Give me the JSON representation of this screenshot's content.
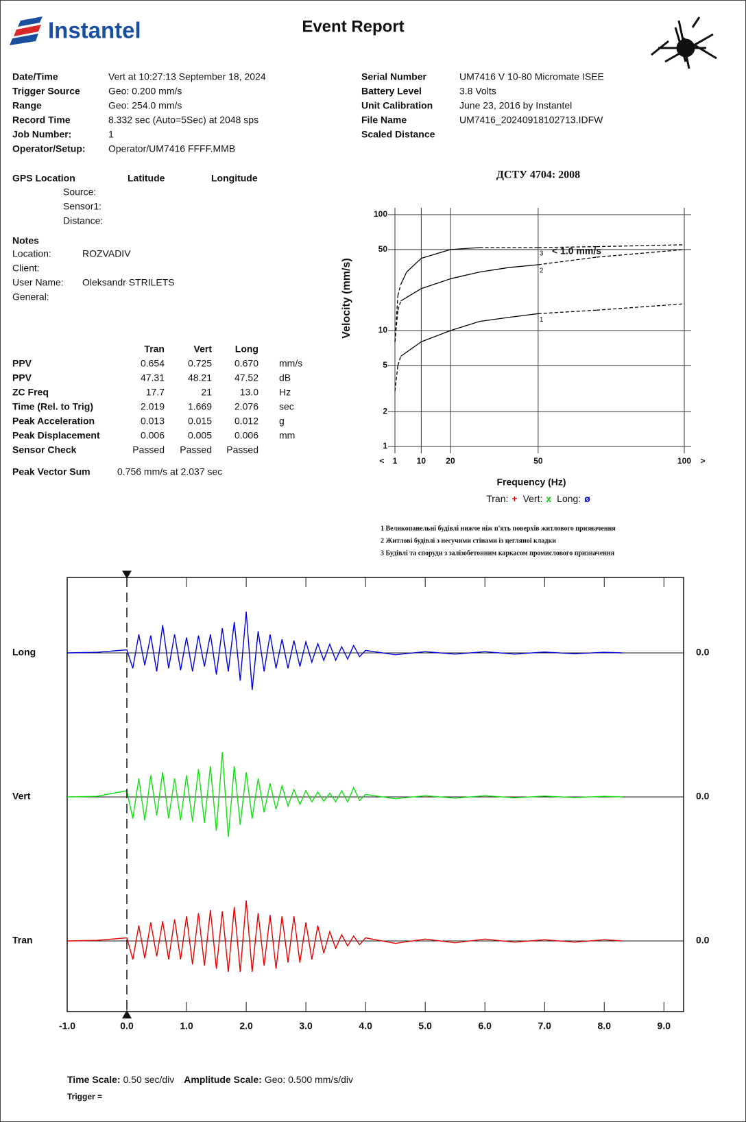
{
  "header": {
    "logo": "Instantel",
    "title": "Event Report"
  },
  "info_left": [
    {
      "label": "Date/Time",
      "value": "Vert at 10:27:13 September 18, 2024"
    },
    {
      "label": "Trigger Source",
      "value": "Geo: 0.200 mm/s"
    },
    {
      "label": "Range",
      "value": "Geo: 254.0 mm/s"
    },
    {
      "label": "Record Time",
      "value": "8.332 sec (Auto=5Sec) at 2048 sps"
    },
    {
      "label": "Job Number:",
      "value": "1"
    },
    {
      "label": "Operator/Setup:",
      "value": "Operator/UM7416 FFFF.MMB"
    }
  ],
  "info_right": [
    {
      "label": "Serial Number",
      "value": "UM7416 V 10-80 Micromate ISEE"
    },
    {
      "label": "Battery Level",
      "value": "3.8 Volts"
    },
    {
      "label": "Unit Calibration",
      "value": "June 23, 2016 by Instantel"
    },
    {
      "label": "File Name",
      "value": "UM7416_20240918102713.IDFW"
    },
    {
      "label": "Scaled Distance"
    }
  ],
  "gps": {
    "title": "GPS Location",
    "columns": [
      "Latitude",
      "Longitude"
    ],
    "rows": [
      "Source:",
      "Sensor1:",
      "Distance:"
    ]
  },
  "notes": {
    "title": "Notes",
    "rows": [
      {
        "label": "Location:",
        "value": "ROZVADIV"
      },
      {
        "label": "Client:"
      },
      {
        "label": "User Name:",
        "value": "Oleksandr STRILETS"
      },
      {
        "label": "General:"
      }
    ]
  },
  "peaks": {
    "columns": [
      "Tran",
      "Vert",
      "Long"
    ],
    "rows": [
      {
        "label": "PPV",
        "values": [
          "0.654",
          "0.725",
          "0.670"
        ],
        "unit": "mm/s"
      },
      {
        "label": "PPV",
        "values": [
          "47.31",
          "48.21",
          "47.52"
        ],
        "unit": "dB"
      },
      {
        "label": "ZC Freq",
        "values": [
          "17.7",
          "21",
          "13.0"
        ],
        "unit": "Hz"
      },
      {
        "label": "Time (Rel. to Trig)",
        "values": [
          "2.019",
          "1.669",
          "2.076"
        ],
        "unit": "sec"
      },
      {
        "label": "Peak Acceleration",
        "values": [
          "0.013",
          "0.015",
          "0.012"
        ],
        "unit": "g"
      },
      {
        "label": "Peak Displacement",
        "values": [
          "0.006",
          "0.005",
          "0.006"
        ],
        "unit": "mm"
      },
      {
        "label": "Sensor Check",
        "values": [
          "Passed",
          "Passed",
          "Passed"
        ]
      }
    ]
  },
  "peak_vector_sum": {
    "label": "Peak Vector Sum",
    "value": "0.756 mm/s at 2.037 sec"
  },
  "footer": {
    "time_scale_label": "Time Scale:",
    "time_scale": "0.50 sec/div",
    "amplitude_scale_label": "Amplitude Scale:",
    "amplitude_scale": "Geo: 0.500 mm/s/div",
    "trigger": "Trigger ="
  },
  "chart_data": [
    {
      "type": "line",
      "title": "ДСТУ 4704: 2008",
      "xlabel": "Frequency (Hz)",
      "ylabel": "Velocity (mm/s)",
      "x_under": "<",
      "x_over": ">",
      "xlim": [
        1,
        100
      ],
      "ylim": [
        1,
        100
      ],
      "ylog": true,
      "xticks": [
        1,
        10,
        20,
        50,
        100
      ],
      "yticks": [
        1,
        2,
        5,
        10,
        50,
        100
      ],
      "grid": true,
      "series": [
        {
          "name": "1",
          "color": "#000000",
          "x": [
            1,
            2,
            3,
            10,
            20,
            30,
            40,
            50,
            70,
            100
          ],
          "values": [
            3,
            5,
            6,
            8,
            10,
            12,
            13,
            14,
            15,
            17
          ],
          "dashed": [
            true,
            true,
            false,
            false,
            false,
            false,
            false,
            true,
            true,
            true
          ]
        },
        {
          "name": "2",
          "color": "#000000",
          "x": [
            1,
            2,
            3,
            10,
            20,
            30,
            40,
            50,
            70,
            100
          ],
          "values": [
            8,
            15,
            18,
            23,
            28,
            32,
            35,
            37,
            43,
            50
          ],
          "dashed": [
            true,
            true,
            false,
            false,
            false,
            false,
            false,
            true,
            true,
            true
          ]
        },
        {
          "name": "3",
          "color": "#000000",
          "x": [
            1,
            2,
            3,
            5,
            10,
            20,
            30,
            50,
            70,
            100
          ],
          "values": [
            8,
            20,
            25,
            32,
            42,
            50,
            52,
            52,
            53,
            55
          ],
          "dashed": [
            true,
            true,
            false,
            false,
            false,
            false,
            true,
            true,
            true,
            true
          ]
        }
      ],
      "annotation": "< 1.0 mm/s",
      "legend": [
        {
          "label": "Tran:",
          "symbol": "+",
          "color": "#e00000"
        },
        {
          "label": "Vert:",
          "symbol": "x",
          "color": "#00d000"
        },
        {
          "label": "Long:",
          "symbol": "ø",
          "color": "#0000e0"
        }
      ],
      "notes": [
        "1 Великопанельні будівлі нижче ніж п'ять поверхів житлового призначення",
        "2 Житлові будівлі з несучими стінами із цегляної кладки",
        "3 Будівлі та споруди з залізобетонним каркасом промислового призначення"
      ]
    },
    {
      "type": "waveform",
      "xlim": [
        -1,
        9.33
      ],
      "xticks": [
        {
          "value": -1,
          "label": "-1.0"
        },
        {
          "value": 0,
          "label": "0.0"
        },
        {
          "value": 1,
          "label": "1.0"
        },
        {
          "value": 2,
          "label": "2.0"
        },
        {
          "value": 3,
          "label": "3.0"
        },
        {
          "value": 4,
          "label": "4.0"
        },
        {
          "value": 5,
          "label": "5.0"
        },
        {
          "value": 6,
          "label": "6.0"
        },
        {
          "value": 7,
          "label": "7.0"
        },
        {
          "value": 8,
          "label": "8.0"
        },
        {
          "value": 9,
          "label": "9.0"
        }
      ],
      "trigger": 0,
      "x": [
        -1.0,
        -0.5,
        0.0,
        0.1,
        0.2,
        0.3,
        0.4,
        0.5,
        0.6,
        0.7,
        0.8,
        0.9,
        1.0,
        1.1,
        1.2,
        1.3,
        1.4,
        1.5,
        1.6,
        1.7,
        1.8,
        1.9,
        2.0,
        2.1,
        2.2,
        2.3,
        2.4,
        2.5,
        2.6,
        2.7,
        2.8,
        2.9,
        3.0,
        3.1,
        3.2,
        3.3,
        3.4,
        3.5,
        3.6,
        3.7,
        3.8,
        3.9,
        4.0,
        4.5,
        5.0,
        5.5,
        6.0,
        6.5,
        7.0,
        7.5,
        8.0,
        8.3
      ],
      "series": [
        {
          "name": "Long",
          "color": "#0000e0",
          "zero_label": {
            "value": 0,
            "label": "0.0"
          },
          "values": [
            0.0,
            0.01,
            0.05,
            -0.25,
            0.3,
            -0.2,
            0.28,
            -0.3,
            0.45,
            -0.25,
            0.3,
            -0.28,
            0.25,
            -0.3,
            0.28,
            -0.22,
            0.3,
            -0.35,
            0.4,
            -0.3,
            0.5,
            -0.45,
            0.67,
            -0.6,
            0.35,
            -0.3,
            0.3,
            -0.25,
            0.22,
            -0.25,
            0.2,
            -0.22,
            0.18,
            -0.15,
            0.15,
            -0.12,
            0.14,
            -0.12,
            0.1,
            -0.1,
            0.12,
            -0.06,
            0.04,
            -0.03,
            0.02,
            -0.02,
            0.02,
            -0.02,
            0.015,
            -0.015,
            0.01,
            0.0
          ]
        },
        {
          "name": "Vert",
          "color": "#10e010",
          "zero_label": {
            "value": 0,
            "label": "0.0"
          },
          "values": [
            0.0,
            0.01,
            0.1,
            -0.35,
            0.3,
            -0.38,
            0.35,
            -0.3,
            0.4,
            -0.35,
            0.3,
            -0.38,
            0.35,
            -0.4,
            0.45,
            -0.42,
            0.5,
            -0.55,
            0.725,
            -0.65,
            0.5,
            -0.45,
            0.4,
            -0.35,
            0.3,
            -0.25,
            0.22,
            -0.2,
            0.18,
            -0.15,
            0.12,
            -0.12,
            0.1,
            -0.08,
            0.08,
            -0.07,
            0.06,
            -0.08,
            0.1,
            -0.08,
            0.15,
            -0.06,
            0.04,
            -0.03,
            0.02,
            -0.02,
            0.02,
            -0.015,
            0.015,
            -0.01,
            0.01,
            0.0
          ]
        },
        {
          "name": "Tran",
          "color": "#e80000",
          "zero_label": {
            "value": 0,
            "label": "0.0"
          },
          "values": [
            0.0,
            0.01,
            0.05,
            -0.3,
            0.25,
            -0.28,
            0.3,
            -0.25,
            0.32,
            -0.3,
            0.35,
            -0.3,
            0.4,
            -0.38,
            0.45,
            -0.4,
            0.5,
            -0.45,
            0.48,
            -0.5,
            0.55,
            -0.5,
            0.654,
            -0.5,
            0.45,
            -0.4,
            0.42,
            -0.45,
            0.4,
            -0.35,
            0.4,
            -0.35,
            0.3,
            -0.3,
            0.25,
            -0.2,
            0.15,
            -0.12,
            0.1,
            -0.08,
            0.08,
            -0.06,
            0.05,
            -0.04,
            0.03,
            -0.03,
            0.03,
            -0.02,
            0.02,
            -0.02,
            0.02,
            0.0
          ]
        }
      ]
    }
  ]
}
